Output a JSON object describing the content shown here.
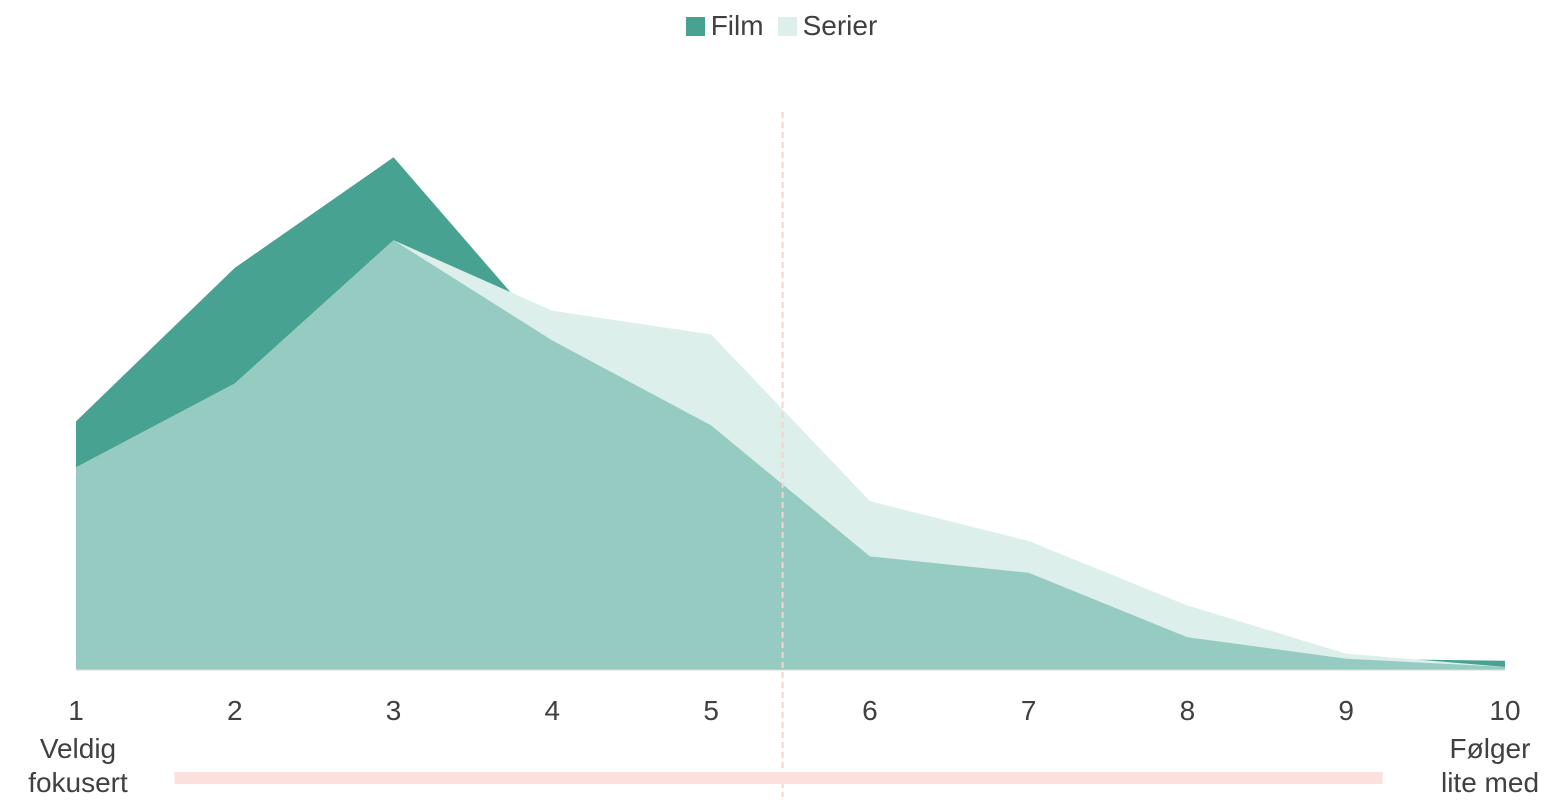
{
  "legend": {
    "items": [
      {
        "name": "Film",
        "color": "#48a291"
      },
      {
        "name": "Serier",
        "color": "#dcefeb"
      }
    ]
  },
  "scale_labels": {
    "left": [
      "Veldig",
      "fokusert"
    ],
    "right": [
      "Følger",
      "lite med"
    ]
  },
  "chart_data": {
    "type": "area",
    "categories": [
      "1",
      "2",
      "3",
      "4",
      "5",
      "6",
      "7",
      "8",
      "9",
      "10"
    ],
    "series": [
      {
        "name": "Film",
        "color": "#48a291",
        "values": [
          24.3,
          39.3,
          50.1,
          32.2,
          23.9,
          11.1,
          9.5,
          3.2,
          1.1,
          0.9
        ]
      },
      {
        "name": "Serier",
        "color": "#dcefeb",
        "values": [
          19.8,
          28.0,
          42.0,
          35.1,
          32.8,
          16.5,
          12.6,
          6.3,
          1.6,
          0.3
        ]
      }
    ],
    "overlap_color": "#95cbc1",
    "ylim": [
      0,
      60
    ],
    "x_marker": {
      "position": 5.45,
      "style": "dashed",
      "color": "#f6d3cf"
    },
    "range_bar": {
      "from": 1.62,
      "to": 9.23,
      "color": "#fbe0dd"
    },
    "grid": false,
    "legend_position": "top"
  }
}
